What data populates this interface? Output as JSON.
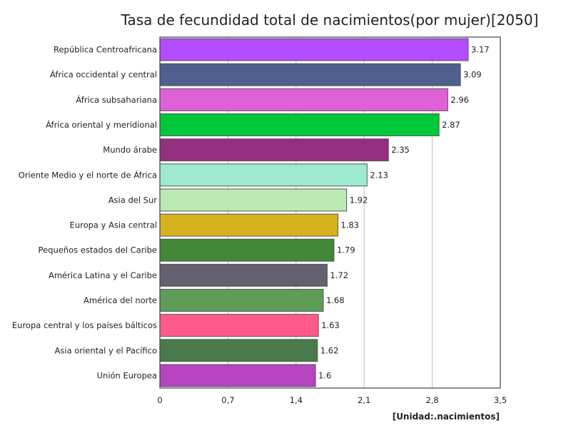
{
  "chart_data": {
    "type": "bar",
    "orientation": "horizontal",
    "title": "Tasa de fecundidad total de nacimientos(por mujer)[2050]",
    "unit_label": "[Unidad:.nacimientos]",
    "xlim": [
      0,
      3.5
    ],
    "x_ticks": [
      "0",
      "0,7",
      "1,4",
      "2,1",
      "2,8",
      "3,5"
    ],
    "x_tick_values": [
      0,
      0.7,
      1.4,
      2.1,
      2.8,
      3.5
    ],
    "grid": true,
    "categories": [
      "República Centroafricana",
      "África occidental y central",
      "África subsahariana",
      "África oriental y meridional",
      "Mundo árabe",
      "Oriente Medio y el norte de África",
      "Asia del Sur",
      "Europa y Asia central",
      "Pequeños estados del Caribe",
      "América Latina y el Caribe",
      "América del norte",
      "Europa central y los países bálticos",
      "Asia oriental y el Pacífico",
      "Unión Europea"
    ],
    "values": [
      3.17,
      3.09,
      2.96,
      2.87,
      2.35,
      2.13,
      1.92,
      1.83,
      1.79,
      1.72,
      1.68,
      1.63,
      1.62,
      1.6
    ],
    "value_labels": [
      "3.17",
      "3.09",
      "2.96",
      "2.87",
      "2.35",
      "2.13",
      "1.92",
      "1.83",
      "1.79",
      "1.72",
      "1.68",
      "1.63",
      "1.62",
      "1.6"
    ],
    "colors": [
      "#b44dff",
      "#4f5f8e",
      "#e060d8",
      "#00c83a",
      "#922f7e",
      "#9eead0",
      "#bce9b4",
      "#d6b21e",
      "#438638",
      "#636070",
      "#5e9c58",
      "#ff5a8a",
      "#4a7a4c",
      "#b644c0"
    ]
  }
}
